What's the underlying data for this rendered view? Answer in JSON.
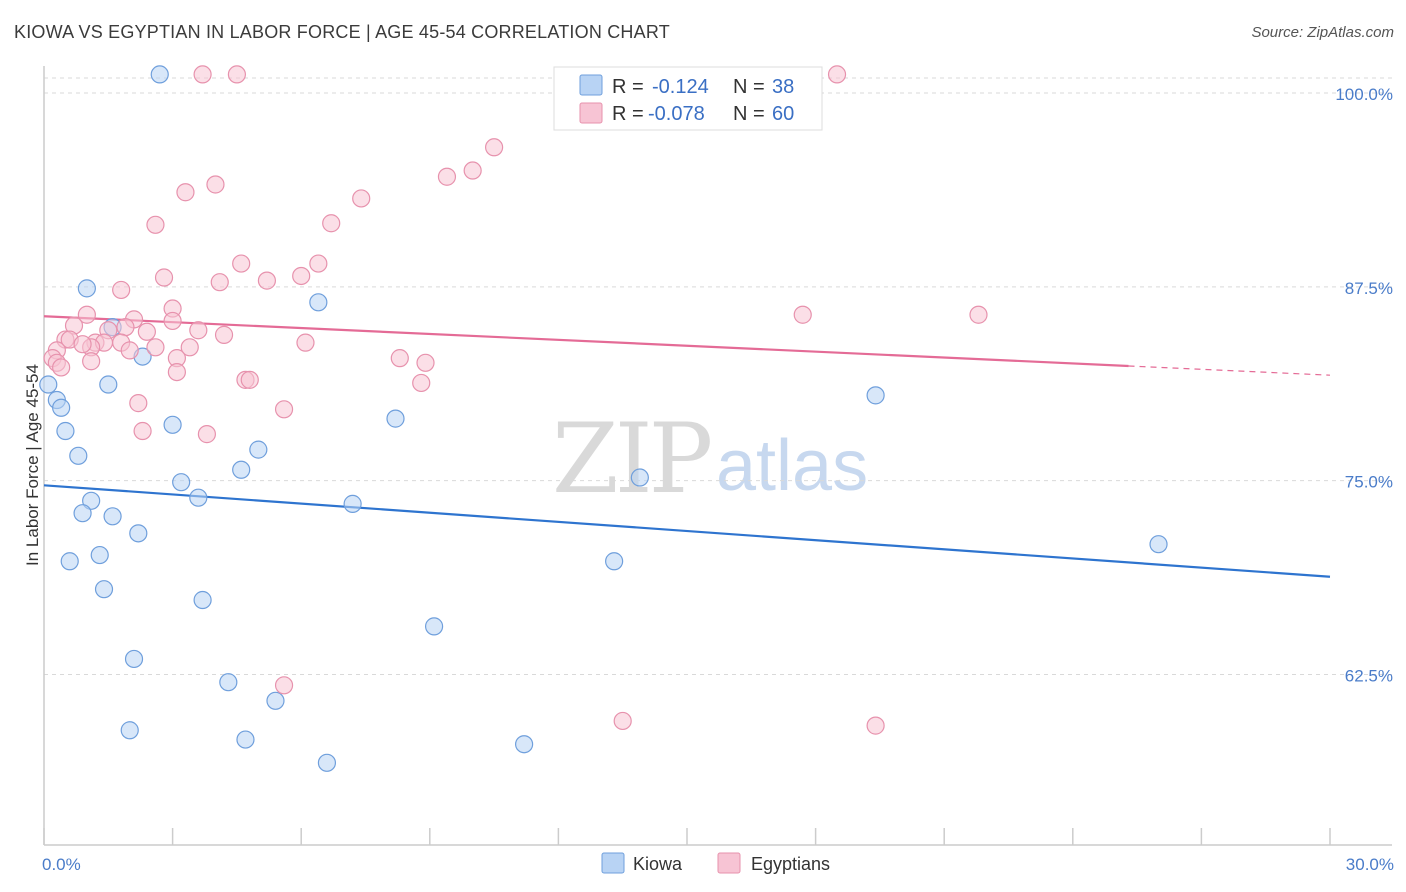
{
  "title": "KIOWA VS EGYPTIAN IN LABOR FORCE | AGE 45-54 CORRELATION CHART",
  "source": "Source: ZipAtlas.com",
  "watermark": {
    "zip": "ZIP",
    "atlas": "atlas"
  },
  "colors": {
    "kiowa_fill": "#b8d3f4",
    "kiowa_stroke": "#6f9fdc",
    "kiowa_line": "#2e74cf",
    "egypt_fill": "#f7c4d4",
    "egypt_stroke": "#e792ad",
    "egypt_line": "#e46b96",
    "grid": "#d9d9d9",
    "tick_label": "#4a7cc9"
  },
  "legend": {
    "kiowa": {
      "r_label": "R =",
      "r_value": "-0.124",
      "n_label": "N =",
      "n_value": "38"
    },
    "egyptians": {
      "r_label": "R =",
      "r_value": "-0.078",
      "n_label": "N =",
      "n_value": "60"
    }
  },
  "chart_data": {
    "type": "scatter",
    "xlabel": "",
    "ylabel": "In Labor Force | Age 45-54",
    "xlim": [
      0,
      30
    ],
    "ylim": [
      51.5,
      102
    ],
    "x_tick_labels": [
      {
        "value": 0,
        "label": "0.0%"
      },
      {
        "value": 30,
        "label": "30.0%"
      }
    ],
    "y_tick_labels": [
      {
        "value": 100,
        "label": "100.0%"
      },
      {
        "value": 87.5,
        "label": "87.5%"
      },
      {
        "value": 75,
        "label": "75.0%"
      },
      {
        "value": 62.5,
        "label": "62.5%"
      }
    ],
    "series": [
      {
        "name": "Kiowa",
        "trend": {
          "x": [
            0,
            30
          ],
          "y": [
            74.7,
            68.8
          ],
          "dashed_from": null
        },
        "points": [
          [
            2.7,
            101.2
          ],
          [
            1.0,
            87.4
          ],
          [
            6.4,
            86.5
          ],
          [
            1.6,
            84.9
          ],
          [
            2.3,
            83.0
          ],
          [
            0.1,
            81.2
          ],
          [
            1.5,
            81.2
          ],
          [
            0.3,
            80.2
          ],
          [
            0.4,
            79.7
          ],
          [
            8.2,
            79.0
          ],
          [
            3.0,
            78.6
          ],
          [
            0.5,
            78.2
          ],
          [
            19.4,
            80.5
          ],
          [
            5.0,
            77.0
          ],
          [
            0.8,
            76.6
          ],
          [
            4.6,
            75.7
          ],
          [
            3.2,
            74.9
          ],
          [
            13.9,
            75.2
          ],
          [
            3.6,
            73.9
          ],
          [
            1.1,
            73.7
          ],
          [
            7.2,
            73.5
          ],
          [
            0.9,
            72.9
          ],
          [
            1.6,
            72.7
          ],
          [
            2.2,
            71.6
          ],
          [
            26.0,
            70.9
          ],
          [
            0.6,
            69.8
          ],
          [
            1.3,
            70.2
          ],
          [
            13.3,
            69.8
          ],
          [
            1.4,
            68.0
          ],
          [
            3.7,
            67.3
          ],
          [
            9.1,
            65.6
          ],
          [
            2.1,
            63.5
          ],
          [
            4.3,
            62.0
          ],
          [
            5.4,
            60.8
          ],
          [
            2.0,
            58.9
          ],
          [
            4.7,
            58.3
          ],
          [
            11.2,
            58.0
          ],
          [
            6.6,
            56.8
          ]
        ]
      },
      {
        "name": "Egyptians",
        "trend": {
          "x": [
            0,
            30
          ],
          "y": [
            85.6,
            81.8
          ],
          "dashed_from": 25.3
        },
        "points": [
          [
            3.7,
            101.2
          ],
          [
            4.5,
            101.2
          ],
          [
            18.5,
            101.2
          ],
          [
            10.5,
            96.5
          ],
          [
            10.0,
            95.0
          ],
          [
            9.4,
            94.6
          ],
          [
            4.0,
            94.1
          ],
          [
            3.3,
            93.6
          ],
          [
            7.4,
            93.2
          ],
          [
            2.6,
            91.5
          ],
          [
            6.7,
            91.6
          ],
          [
            6.4,
            89.0
          ],
          [
            4.6,
            89.0
          ],
          [
            2.8,
            88.1
          ],
          [
            6.0,
            88.2
          ],
          [
            5.2,
            87.9
          ],
          [
            4.1,
            87.8
          ],
          [
            1.8,
            87.3
          ],
          [
            3.0,
            86.1
          ],
          [
            17.7,
            85.7
          ],
          [
            21.8,
            85.7
          ],
          [
            1.0,
            85.7
          ],
          [
            2.1,
            85.4
          ],
          [
            3.0,
            85.3
          ],
          [
            0.7,
            85.0
          ],
          [
            1.9,
            84.9
          ],
          [
            1.5,
            84.7
          ],
          [
            2.4,
            84.6
          ],
          [
            3.6,
            84.7
          ],
          [
            4.2,
            84.4
          ],
          [
            0.5,
            84.1
          ],
          [
            0.6,
            84.1
          ],
          [
            1.2,
            83.9
          ],
          [
            1.4,
            83.9
          ],
          [
            1.8,
            83.9
          ],
          [
            6.1,
            83.9
          ],
          [
            2.6,
            83.6
          ],
          [
            1.1,
            83.6
          ],
          [
            0.9,
            83.8
          ],
          [
            3.4,
            83.6
          ],
          [
            0.3,
            83.4
          ],
          [
            2.0,
            83.4
          ],
          [
            0.2,
            82.9
          ],
          [
            3.1,
            82.9
          ],
          [
            1.1,
            82.7
          ],
          [
            8.3,
            82.9
          ],
          [
            8.9,
            82.6
          ],
          [
            0.3,
            82.6
          ],
          [
            0.4,
            82.3
          ],
          [
            3.1,
            82.0
          ],
          [
            4.7,
            81.5
          ],
          [
            4.8,
            81.5
          ],
          [
            8.8,
            81.3
          ],
          [
            2.2,
            80.0
          ],
          [
            5.6,
            79.6
          ],
          [
            2.3,
            78.2
          ],
          [
            3.8,
            78.0
          ],
          [
            5.6,
            61.8
          ],
          [
            13.5,
            59.5
          ],
          [
            19.4,
            59.2
          ]
        ]
      }
    ]
  },
  "bottom_legend": {
    "kiowa": "Kiowa",
    "egyptians": "Egyptians"
  }
}
